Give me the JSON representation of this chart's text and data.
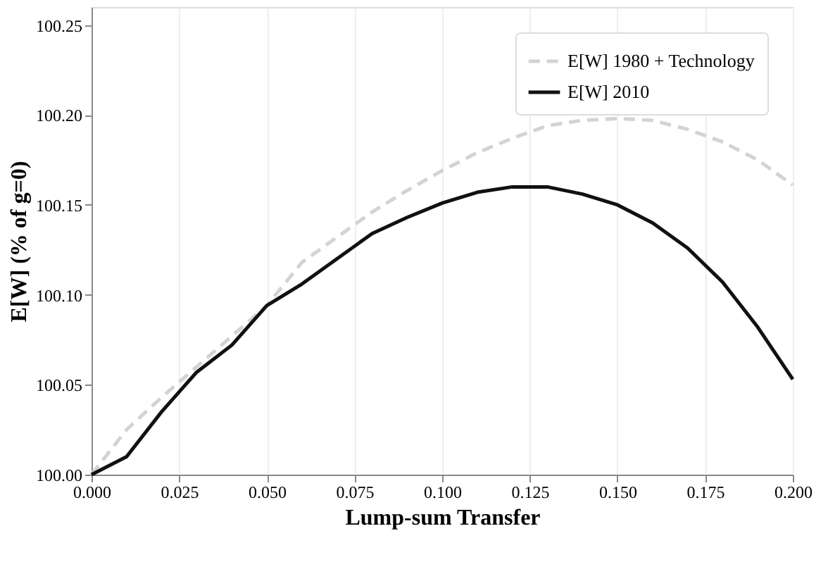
{
  "chart_data": {
    "type": "line",
    "xlabel": "Lump-sum Transfer",
    "ylabel": "E[W] (% of g=0)",
    "x": [
      0,
      0.01,
      0.02,
      0.03,
      0.04,
      0.05,
      0.06,
      0.07,
      0.08,
      0.09,
      0.1,
      0.11,
      0.12,
      0.13,
      0.14,
      0.15,
      0.16,
      0.17,
      0.18,
      0.19,
      0.2
    ],
    "series": [
      {
        "name": "E[W] 1980 + Technology",
        "color": "#d3d3d3",
        "line_style": "dashed",
        "values": [
          100.0,
          100.025,
          100.043,
          100.06,
          100.077,
          100.094,
          100.118,
          100.132,
          100.146,
          100.158,
          100.169,
          100.179,
          100.187,
          100.194,
          100.197,
          100.198,
          100.197,
          100.192,
          100.185,
          100.175,
          100.161
        ]
      },
      {
        "name": "E[W] 2010",
        "color": "#111111",
        "line_style": "solid",
        "values": [
          100.0,
          100.01,
          100.035,
          100.057,
          100.072,
          100.094,
          100.106,
          100.12,
          100.134,
          100.143,
          100.151,
          100.157,
          100.16,
          100.16,
          100.156,
          100.15,
          100.14,
          100.126,
          100.107,
          100.082,
          100.053
        ]
      }
    ],
    "xlim": [
      0,
      0.2
    ],
    "xticks": [
      {
        "value": 0,
        "label": "0.000"
      },
      {
        "value": 0.025,
        "label": "0.025"
      },
      {
        "value": 0.05,
        "label": "0.050"
      },
      {
        "value": 0.075,
        "label": "0.075"
      },
      {
        "value": 0.1,
        "label": "0.100"
      },
      {
        "value": 0.125,
        "label": "0.125"
      },
      {
        "value": 0.15,
        "label": "0.150"
      },
      {
        "value": 0.175,
        "label": "0.175"
      },
      {
        "value": 0.2,
        "label": "0.200"
      }
    ],
    "ylim": [
      100.0,
      100.26
    ],
    "yticks": [
      {
        "value": 100.0,
        "label": "100.00"
      },
      {
        "value": 100.05,
        "label": "100.05"
      },
      {
        "value": 100.1,
        "label": "100.10"
      },
      {
        "value": 100.15,
        "label": "100.15"
      },
      {
        "value": 100.2,
        "label": "100.20"
      },
      {
        "value": 100.25,
        "label": "100.25"
      }
    ],
    "grid": "x",
    "legend": "top right"
  }
}
